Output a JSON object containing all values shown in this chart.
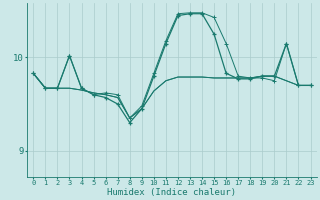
{
  "xlabel": "Humidex (Indice chaleur)",
  "background_color": "#cce8e8",
  "grid_color": "#aacccc",
  "line_color": "#1a7a6e",
  "ylim": [
    8.72,
    10.58
  ],
  "y_ticks": [
    9,
    10
  ],
  "x_ticks": [
    0,
    1,
    2,
    3,
    4,
    5,
    6,
    7,
    8,
    9,
    10,
    11,
    12,
    13,
    14,
    15,
    16,
    17,
    18,
    19,
    20,
    21,
    22,
    23
  ],
  "main_series": [
    9.83,
    9.67,
    9.67,
    10.02,
    9.67,
    9.6,
    9.57,
    9.5,
    9.3,
    9.45,
    9.8,
    10.15,
    10.45,
    10.47,
    10.47,
    10.25,
    9.83,
    9.77,
    9.77,
    9.8,
    9.8,
    10.15,
    9.7,
    9.7
  ],
  "line2": [
    9.83,
    9.67,
    9.67,
    10.02,
    9.67,
    9.6,
    9.62,
    9.6,
    9.35,
    9.48,
    9.83,
    10.18,
    10.47,
    10.48,
    10.48,
    10.43,
    10.15,
    9.8,
    9.78,
    9.78,
    9.75,
    10.15,
    9.7,
    9.7
  ],
  "line3": [
    9.83,
    9.67,
    9.67,
    9.67,
    9.65,
    9.62,
    9.6,
    9.57,
    9.35,
    9.45,
    9.64,
    9.75,
    9.79,
    9.79,
    9.79,
    9.78,
    9.78,
    9.78,
    9.78,
    9.8,
    9.8,
    9.75,
    9.7,
    9.7
  ],
  "line4": [
    9.83,
    9.67,
    9.67,
    9.67,
    9.65,
    9.62,
    9.6,
    9.57,
    9.35,
    9.45,
    9.64,
    9.75,
    9.79,
    9.79,
    9.79,
    9.78,
    9.78,
    9.78,
    9.78,
    9.8,
    9.8,
    9.75,
    9.7,
    9.7
  ]
}
